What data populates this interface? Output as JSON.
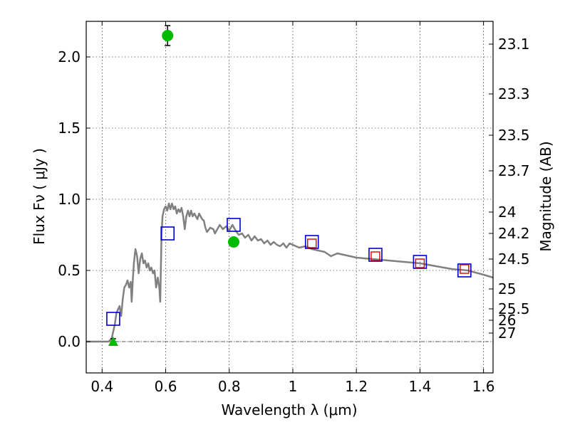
{
  "chart_data": {
    "type": "scatter",
    "xlabel": "Wavelength  λ (μm)",
    "ylabel": "Flux  Fν  ( μJy )",
    "y2label": "Magnitude (AB)",
    "xlim": [
      0.35,
      1.63
    ],
    "ylim": [
      -0.22,
      2.25
    ],
    "x_ticks": [
      {
        "value": 0.4,
        "label": "0.4"
      },
      {
        "value": 0.6,
        "label": "0.6"
      },
      {
        "value": 0.8,
        "label": "0.8"
      },
      {
        "value": 1.0,
        "label": "1"
      },
      {
        "value": 1.2,
        "label": "1.2"
      },
      {
        "value": 1.4,
        "label": "1.4"
      },
      {
        "value": 1.6,
        "label": "1.6"
      }
    ],
    "y_ticks": [
      {
        "value": 0.0,
        "label": "0.0"
      },
      {
        "value": 0.5,
        "label": "0.5"
      },
      {
        "value": 1.0,
        "label": "1.0"
      },
      {
        "value": 1.5,
        "label": "1.5"
      },
      {
        "value": 2.0,
        "label": "2.0"
      }
    ],
    "mag_ticks": [
      {
        "flux": 2.09,
        "label": "23.1"
      },
      {
        "flux": 1.74,
        "label": "23.3"
      },
      {
        "flux": 1.45,
        "label": "23.5"
      },
      {
        "flux": 1.2,
        "label": "23.7"
      },
      {
        "flux": 0.91,
        "label": "24"
      },
      {
        "flux": 0.76,
        "label": "24.2"
      },
      {
        "flux": 0.58,
        "label": "24.5"
      },
      {
        "flux": 0.37,
        "label": "25"
      },
      {
        "flux": 0.23,
        "label": "25.5"
      },
      {
        "flux": 0.15,
        "label": "26"
      },
      {
        "flux": 0.06,
        "label": "27"
      }
    ],
    "grid": true,
    "zero_line": true,
    "colors": {
      "model": "#808080",
      "observed": "#00bb00",
      "model_box": "#0000cc",
      "synthetic_box": "#dd0000",
      "zero_line": "#555555"
    },
    "series": [
      {
        "kind": "line",
        "points": [
          [
            0.35,
            0.0
          ],
          [
            0.42,
            0.0
          ],
          [
            0.43,
            0.02
          ],
          [
            0.44,
            0.12
          ],
          [
            0.445,
            0.2
          ],
          [
            0.455,
            0.25
          ],
          [
            0.46,
            0.18
          ],
          [
            0.465,
            0.3
          ],
          [
            0.47,
            0.38
          ],
          [
            0.475,
            0.4
          ],
          [
            0.48,
            0.43
          ],
          [
            0.485,
            0.38
          ],
          [
            0.49,
            0.42
          ],
          [
            0.493,
            0.28
          ],
          [
            0.497,
            0.45
          ],
          [
            0.5,
            0.55
          ],
          [
            0.505,
            0.65
          ],
          [
            0.51,
            0.6
          ],
          [
            0.515,
            0.48
          ],
          [
            0.52,
            0.58
          ],
          [
            0.525,
            0.62
          ],
          [
            0.53,
            0.55
          ],
          [
            0.535,
            0.57
          ],
          [
            0.54,
            0.52
          ],
          [
            0.545,
            0.55
          ],
          [
            0.55,
            0.5
          ],
          [
            0.555,
            0.52
          ],
          [
            0.56,
            0.48
          ],
          [
            0.565,
            0.5
          ],
          [
            0.57,
            0.38
          ],
          [
            0.575,
            0.45
          ],
          [
            0.58,
            0.38
          ],
          [
            0.583,
            0.28
          ],
          [
            0.587,
            0.75
          ],
          [
            0.59,
            0.88
          ],
          [
            0.595,
            0.93
          ],
          [
            0.6,
            0.95
          ],
          [
            0.605,
            0.92
          ],
          [
            0.61,
            0.97
          ],
          [
            0.615,
            0.93
          ],
          [
            0.62,
            0.97
          ],
          [
            0.625,
            0.93
          ],
          [
            0.63,
            0.95
          ],
          [
            0.635,
            0.9
          ],
          [
            0.64,
            0.93
          ],
          [
            0.645,
            0.91
          ],
          [
            0.65,
            0.94
          ],
          [
            0.655,
            0.88
          ],
          [
            0.66,
            0.79
          ],
          [
            0.665,
            0.88
          ],
          [
            0.67,
            0.92
          ],
          [
            0.675,
            0.88
          ],
          [
            0.68,
            0.92
          ],
          [
            0.685,
            0.88
          ],
          [
            0.69,
            0.9
          ],
          [
            0.7,
            0.86
          ],
          [
            0.705,
            0.9
          ],
          [
            0.71,
            0.88
          ],
          [
            0.715,
            0.86
          ],
          [
            0.72,
            0.85
          ],
          [
            0.725,
            0.8
          ],
          [
            0.73,
            0.77
          ],
          [
            0.74,
            0.8
          ],
          [
            0.75,
            0.79
          ],
          [
            0.755,
            0.76
          ],
          [
            0.76,
            0.78
          ],
          [
            0.77,
            0.82
          ],
          [
            0.78,
            0.79
          ],
          [
            0.79,
            0.81
          ],
          [
            0.8,
            0.78
          ],
          [
            0.81,
            0.82
          ],
          [
            0.82,
            0.78
          ],
          [
            0.83,
            0.75
          ],
          [
            0.84,
            0.76
          ],
          [
            0.85,
            0.73
          ],
          [
            0.86,
            0.75
          ],
          [
            0.87,
            0.71
          ],
          [
            0.88,
            0.74
          ],
          [
            0.89,
            0.71
          ],
          [
            0.9,
            0.72
          ],
          [
            0.91,
            0.69
          ],
          [
            0.92,
            0.71
          ],
          [
            0.93,
            0.68
          ],
          [
            0.94,
            0.7
          ],
          [
            0.95,
            0.68
          ],
          [
            0.96,
            0.67
          ],
          [
            0.97,
            0.69
          ],
          [
            0.98,
            0.66
          ],
          [
            0.99,
            0.69
          ],
          [
            1.0,
            0.68
          ],
          [
            1.02,
            0.66
          ],
          [
            1.04,
            0.67
          ],
          [
            1.06,
            0.65
          ],
          [
            1.08,
            0.64
          ],
          [
            1.1,
            0.63
          ],
          [
            1.12,
            0.6
          ],
          [
            1.14,
            0.62
          ],
          [
            1.16,
            0.61
          ],
          [
            1.18,
            0.6
          ],
          [
            1.2,
            0.59
          ],
          [
            1.25,
            0.58
          ],
          [
            1.3,
            0.57
          ],
          [
            1.35,
            0.56
          ],
          [
            1.4,
            0.55
          ],
          [
            1.45,
            0.53
          ],
          [
            1.5,
            0.51
          ],
          [
            1.55,
            0.5
          ],
          [
            1.6,
            0.47
          ],
          [
            1.63,
            0.45
          ]
        ]
      },
      {
        "kind": "points",
        "marker": "circle",
        "points": [
          {
            "x": 0.606,
            "y": 2.15,
            "err": 0.07
          },
          {
            "x": 0.814,
            "y": 0.7,
            "err": 0.03
          }
        ]
      },
      {
        "kind": "points",
        "marker": "triangle",
        "points": [
          {
            "x": 0.435,
            "y": 0.0,
            "err": 0.02
          }
        ]
      },
      {
        "kind": "points",
        "marker": "square-open",
        "points": [
          {
            "x": 0.435,
            "y": 0.16
          },
          {
            "x": 0.606,
            "y": 0.76
          },
          {
            "x": 0.814,
            "y": 0.82
          },
          {
            "x": 1.06,
            "y": 0.7
          },
          {
            "x": 1.26,
            "y": 0.61
          },
          {
            "x": 1.4,
            "y": 0.56
          },
          {
            "x": 1.54,
            "y": 0.5
          }
        ]
      },
      {
        "kind": "points",
        "marker": "square-small",
        "points": [
          {
            "x": 1.06,
            "y": 0.69
          },
          {
            "x": 1.26,
            "y": 0.6
          },
          {
            "x": 1.4,
            "y": 0.55
          },
          {
            "x": 1.54,
            "y": 0.51
          }
        ]
      }
    ]
  }
}
